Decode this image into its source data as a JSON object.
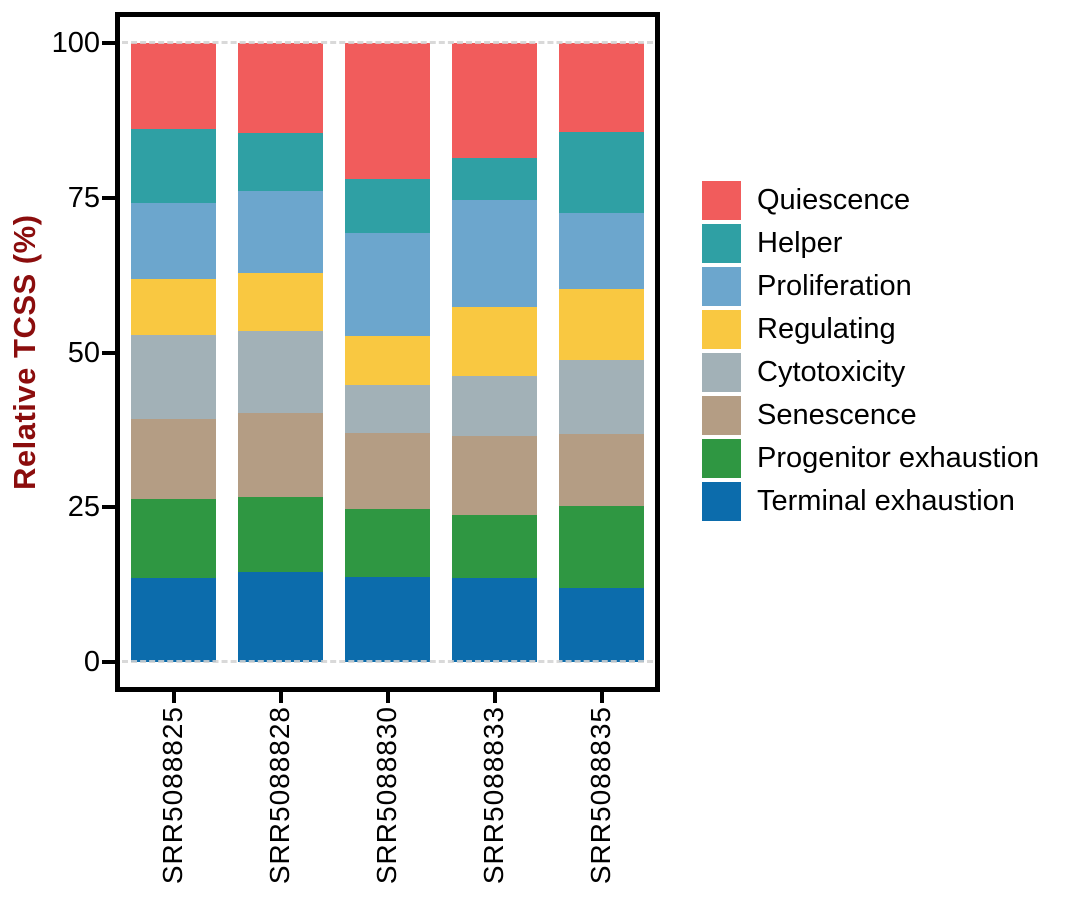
{
  "chart_data": {
    "type": "bar",
    "stacked": true,
    "title": "",
    "xlabel": "",
    "ylabel": "Relative TCSS (%)",
    "ylabel_color": "#8B0D0D",
    "units": "%",
    "ylim": [
      0,
      100
    ],
    "yticks": [
      0,
      25,
      50,
      75,
      100
    ],
    "ytick_labels": [
      "0",
      "25",
      "50",
      "75",
      "100"
    ],
    "grid": "dashed reference lines at y=0 and y=100 only",
    "legend_position": "right",
    "categories": [
      "SRR5088825",
      "SRR5088828",
      "SRR5088830",
      "SRR5088833",
      "SRR5088835"
    ],
    "stack_order_bottom_to_top": [
      "Terminal exhaustion",
      "Progenitor exhaustion",
      "Senescence",
      "Cytotoxicity",
      "Regulating",
      "Proliferation",
      "Helper",
      "Quiescence"
    ],
    "legend_order_top_to_bottom": [
      "Quiescence",
      "Helper",
      "Proliferation",
      "Regulating",
      "Cytotoxicity",
      "Senescence",
      "Progenitor exhaustion",
      "Terminal exhaustion"
    ],
    "series": [
      {
        "name": "Terminal exhaustion",
        "color": "#0C6CAC",
        "values": [
          13.5,
          14.6,
          13.8,
          13.5,
          11.9
        ]
      },
      {
        "name": "Progenitor exhaustion",
        "color": "#2F9742",
        "values": [
          12.8,
          12.1,
          10.9,
          10.2,
          13.3
        ]
      },
      {
        "name": "Senescence",
        "color": "#B49D84",
        "values": [
          12.9,
          13.5,
          12.3,
          12.8,
          11.6
        ]
      },
      {
        "name": "Cytotoxicity",
        "color": "#A2B1B7",
        "values": [
          13.6,
          13.3,
          7.7,
          9.7,
          12.0
        ]
      },
      {
        "name": "Regulating",
        "color": "#F9C841",
        "values": [
          9.1,
          9.3,
          8.0,
          11.2,
          11.4
        ]
      },
      {
        "name": "Proliferation",
        "color": "#6CA6CD",
        "values": [
          12.3,
          13.3,
          16.6,
          17.3,
          12.4
        ]
      },
      {
        "name": "Helper",
        "color": "#2FA0A4",
        "values": [
          11.9,
          9.4,
          8.8,
          6.7,
          13.1
        ]
      },
      {
        "name": "Quiescence",
        "color": "#F15C5C",
        "values": [
          13.9,
          14.5,
          21.9,
          18.6,
          14.3
        ]
      }
    ]
  }
}
